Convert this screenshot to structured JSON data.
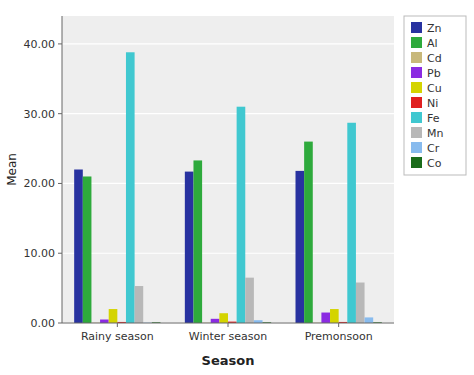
{
  "chart_data": {
    "type": "bar",
    "xlabel": "Season",
    "ylabel": "Mean",
    "categories": [
      "Rainy season",
      "Winter season",
      "Premonsoon"
    ],
    "series": [
      {
        "name": "Zn",
        "color": "#2832a0",
        "values": [
          22.0,
          21.7,
          21.8
        ]
      },
      {
        "name": "Al",
        "color": "#2eaa3c",
        "values": [
          21.0,
          23.3,
          26.0
        ]
      },
      {
        "name": "Cd",
        "color": "#c8b87a",
        "values": [
          0.05,
          0.05,
          0.05
        ]
      },
      {
        "name": "Pb",
        "color": "#8b2be2",
        "values": [
          0.5,
          0.6,
          1.5
        ]
      },
      {
        "name": "Cu",
        "color": "#d4d400",
        "values": [
          2.0,
          1.4,
          2.0
        ]
      },
      {
        "name": "Ni",
        "color": "#e02020",
        "values": [
          0.15,
          0.2,
          0.15
        ]
      },
      {
        "name": "Fe",
        "color": "#40c8d0",
        "values": [
          38.8,
          31.0,
          28.7
        ]
      },
      {
        "name": "Mn",
        "color": "#b8b8b8",
        "values": [
          5.3,
          6.5,
          5.8
        ]
      },
      {
        "name": "Cr",
        "color": "#88bbee",
        "values": [
          0.05,
          0.4,
          0.8
        ]
      },
      {
        "name": "Co",
        "color": "#1a6b1a",
        "values": [
          0.1,
          0.1,
          0.1
        ]
      }
    ],
    "ylim": [
      0,
      44
    ],
    "yticks": [
      {
        "value": 0,
        "label": "0.00"
      },
      {
        "value": 10,
        "label": "10.00"
      },
      {
        "value": 20,
        "label": "20.00"
      },
      {
        "value": 30,
        "label": "30.00"
      },
      {
        "value": 40,
        "label": "40.00"
      }
    ],
    "grid": true,
    "legend": "upper right"
  }
}
